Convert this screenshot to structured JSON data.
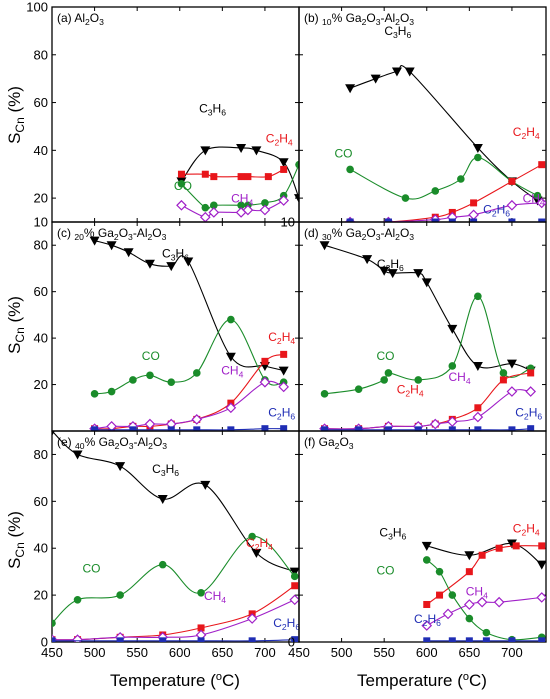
{
  "figure": {
    "xlabel": "Temperature (°C)",
    "ylabel": "S_Cn (%)"
  },
  "colors": {
    "C3H6": "#000000",
    "C2H4": "#e8161b",
    "CO": "#1a8c2a",
    "CH4": "#a020c8",
    "C2H6": "#1f2db4"
  },
  "chart_data": [
    {
      "type": "scatter",
      "panel": "(a)",
      "title": "(a) Al2O3",
      "xlim": [
        450,
        740
      ],
      "ylim": [
        10,
        100
      ],
      "yticks": [
        10,
        20,
        40,
        60,
        80,
        100
      ],
      "xticks": [
        450,
        500,
        550,
        600,
        650,
        700
      ],
      "series": [
        {
          "name": "C3H6",
          "marker": "tri-down",
          "x": [
            602,
            630,
            672,
            690,
            722,
            740
          ],
          "y": [
            27,
            40,
            41,
            40,
            35,
            20
          ]
        },
        {
          "name": "C2H4",
          "marker": "square",
          "x": [
            602,
            630,
            640,
            672,
            680,
            704,
            722
          ],
          "y": [
            30,
            30,
            29,
            29,
            29,
            29,
            32
          ]
        },
        {
          "name": "CO",
          "marker": "circle",
          "x": [
            602,
            630,
            640,
            672,
            680,
            700,
            722,
            740
          ],
          "y": [
            26,
            16,
            17,
            17,
            17,
            18,
            21,
            34
          ]
        },
        {
          "name": "CH4",
          "marker": "diamond-open",
          "x": [
            602,
            630,
            640,
            672,
            680,
            700,
            722
          ],
          "y": [
            17,
            12,
            14,
            14,
            15,
            15,
            19
          ]
        }
      ],
      "labels": [
        {
          "text": "C3H6",
          "series": "C3H6"
        },
        {
          "text": "C2H4",
          "series": "C2H4"
        },
        {
          "text": "CO",
          "series": "CO"
        },
        {
          "text": "CH4",
          "series": "CH4"
        }
      ]
    },
    {
      "type": "scatter",
      "panel": "(b)",
      "title": "(b) 10% Ga2O3-Al2O3",
      "xlim": [
        450,
        740
      ],
      "ylim": [
        10,
        100
      ],
      "yticks": [
        10,
        20,
        40,
        60,
        80,
        100
      ],
      "xticks": [
        450,
        500,
        550,
        600,
        650,
        700
      ],
      "series": [
        {
          "name": "C3H6",
          "marker": "tri-down",
          "x": [
            510,
            540,
            565,
            580,
            660,
            700,
            730
          ],
          "y": [
            66,
            70,
            73,
            73,
            41,
            27,
            19
          ]
        },
        {
          "name": "CO",
          "marker": "circle",
          "x": [
            510,
            575,
            610,
            640,
            660,
            700,
            730
          ],
          "y": [
            32,
            20,
            23,
            28,
            37,
            27,
            21
          ]
        },
        {
          "name": "C2H4",
          "marker": "square",
          "x": [
            510,
            555,
            610,
            630,
            655,
            700,
            735
          ],
          "y": [
            10,
            10,
            12,
            14,
            18,
            27,
            34
          ]
        },
        {
          "name": "CH4",
          "marker": "diamond-open",
          "x": [
            510,
            555,
            610,
            630,
            655,
            700,
            735
          ],
          "y": [
            10,
            10,
            11,
            12,
            13,
            17,
            18
          ]
        },
        {
          "name": "C2H6",
          "marker": "square",
          "x": [
            510,
            555,
            610,
            630,
            655,
            700,
            735
          ],
          "y": [
            10,
            10,
            10,
            10,
            10,
            10,
            10
          ]
        }
      ],
      "labels": [
        {
          "text": "C3H6",
          "series": "C3H6"
        },
        {
          "text": "CO",
          "series": "CO"
        },
        {
          "text": "C2H4",
          "series": "C2H4"
        },
        {
          "text": "CH4",
          "series": "CH4"
        },
        {
          "text": "C2H6",
          "series": "C2H6"
        }
      ]
    },
    {
      "type": "scatter",
      "panel": "(c)",
      "title": "(c) 20% Ga2O3-Al2O3",
      "xlim": [
        450,
        740
      ],
      "ylim": [
        0,
        90
      ],
      "yticks": [
        20,
        40,
        60,
        80
      ],
      "xticks": [
        450,
        500,
        550,
        600,
        650,
        700
      ],
      "series": [
        {
          "name": "C3H6",
          "marker": "tri-down",
          "x": [
            500,
            520,
            540,
            565,
            590,
            610,
            660,
            700,
            722
          ],
          "y": [
            82,
            80,
            77,
            72,
            71,
            73,
            32,
            28,
            26
          ]
        },
        {
          "name": "CO",
          "marker": "circle",
          "x": [
            500,
            520,
            545,
            565,
            590,
            620,
            660,
            700,
            722
          ],
          "y": [
            16,
            17,
            22,
            24,
            21,
            25,
            48,
            22,
            21
          ]
        },
        {
          "name": "C2H4",
          "marker": "square",
          "x": [
            500,
            520,
            545,
            565,
            590,
            620,
            660,
            700,
            722
          ],
          "y": [
            1,
            1,
            2,
            2,
            3,
            5,
            12,
            30,
            33
          ]
        },
        {
          "name": "CH4",
          "marker": "diamond-open",
          "x": [
            500,
            520,
            545,
            565,
            590,
            620,
            660,
            700,
            722
          ],
          "y": [
            1,
            2,
            2,
            3,
            3,
            5,
            10,
            21,
            19
          ]
        },
        {
          "name": "C2H6",
          "marker": "square",
          "x": [
            500,
            545,
            590,
            620,
            660,
            700,
            722
          ],
          "y": [
            0.5,
            0.5,
            0.5,
            0.5,
            0.5,
            1,
            1
          ]
        }
      ],
      "labels": [
        {
          "text": "C3H6",
          "series": "C3H6"
        },
        {
          "text": "CO",
          "series": "CO"
        },
        {
          "text": "C2H4",
          "series": "C2H4"
        },
        {
          "text": "CH4",
          "series": "CH4"
        },
        {
          "text": "C2H6",
          "series": "C2H6"
        }
      ]
    },
    {
      "type": "scatter",
      "panel": "(d)",
      "title": "(d) 30% Ga2O3-Al2O3",
      "xlim": [
        450,
        740
      ],
      "ylim": [
        0,
        90
      ],
      "yticks": [
        20,
        40,
        60,
        80
      ],
      "xticks": [
        450,
        500,
        550,
        600,
        650,
        700
      ],
      "series": [
        {
          "name": "C3H6",
          "marker": "tri-down",
          "x": [
            480,
            530,
            550,
            560,
            590,
            600,
            630,
            660,
            700,
            722
          ],
          "y": [
            80,
            74,
            69,
            68,
            68,
            64,
            44,
            28,
            29,
            26
          ]
        },
        {
          "name": "CO",
          "marker": "circle",
          "x": [
            480,
            520,
            550,
            555,
            590,
            630,
            660,
            690,
            722
          ],
          "y": [
            16,
            18,
            22,
            25,
            22,
            28,
            58,
            25,
            27
          ]
        },
        {
          "name": "C2H4",
          "marker": "square",
          "x": [
            480,
            520,
            555,
            590,
            610,
            630,
            660,
            690,
            722
          ],
          "y": [
            1,
            1,
            2,
            2,
            3,
            5,
            10,
            22,
            25
          ]
        },
        {
          "name": "CH4",
          "marker": "diamond-open",
          "x": [
            480,
            520,
            555,
            590,
            610,
            630,
            660,
            700,
            722
          ],
          "y": [
            1,
            1,
            2,
            2,
            3,
            4,
            6,
            17,
            17
          ]
        },
        {
          "name": "C2H6",
          "marker": "square",
          "x": [
            480,
            520,
            555,
            590,
            630,
            660,
            700,
            722
          ],
          "y": [
            0.5,
            0.5,
            0.5,
            0.5,
            0.5,
            0.5,
            0.5,
            1
          ]
        }
      ],
      "labels": [
        {
          "text": "C3H6",
          "series": "C3H6"
        },
        {
          "text": "CO",
          "series": "CO"
        },
        {
          "text": "C2H4",
          "series": "C2H4"
        },
        {
          "text": "CH4",
          "series": "CH4"
        },
        {
          "text": "C2H6",
          "series": "C2H6"
        }
      ]
    },
    {
      "type": "scatter",
      "panel": "(e)",
      "title": "(e) 40% Ga2O3-Al2O3",
      "xlim": [
        450,
        740
      ],
      "ylim": [
        0,
        90
      ],
      "yticks": [
        0,
        20,
        40,
        60,
        80
      ],
      "xticks": [
        450,
        500,
        550,
        600,
        650,
        700
      ],
      "xticklabels_shown": true,
      "series": [
        {
          "name": "C3H6",
          "marker": "tri-down",
          "x": [
            450,
            480,
            530,
            580,
            630,
            690,
            735
          ],
          "y": [
            90,
            80,
            75,
            61,
            67,
            38,
            30
          ]
        },
        {
          "name": "CO",
          "marker": "circle",
          "x": [
            450,
            480,
            530,
            580,
            625,
            685,
            735
          ],
          "y": [
            8,
            18,
            20,
            33,
            21,
            45,
            28
          ]
        },
        {
          "name": "C2H4",
          "marker": "square",
          "x": [
            450,
            480,
            530,
            580,
            625,
            685,
            735
          ],
          "y": [
            1,
            1,
            2,
            3,
            6,
            12,
            24
          ]
        },
        {
          "name": "CH4",
          "marker": "diamond-open",
          "x": [
            450,
            480,
            530,
            580,
            625,
            685,
            735
          ],
          "y": [
            1,
            1,
            2,
            2,
            3,
            10,
            18
          ]
        },
        {
          "name": "C2H6",
          "marker": "square",
          "x": [
            450,
            530,
            580,
            625,
            685,
            735
          ],
          "y": [
            0.5,
            0.5,
            0.5,
            0.5,
            0.5,
            1
          ]
        }
      ],
      "labels": [
        {
          "text": "C3H6",
          "series": "C3H6"
        },
        {
          "text": "CO",
          "series": "CO"
        },
        {
          "text": "C2H4",
          "series": "C2H4"
        },
        {
          "text": "CH4",
          "series": "CH4"
        },
        {
          "text": "C2H6",
          "series": "C2H6"
        }
      ]
    },
    {
      "type": "scatter",
      "panel": "(f)",
      "title": "(f) Ga2O3",
      "xlim": [
        450,
        740
      ],
      "ylim": [
        0,
        90
      ],
      "yticks": [
        0,
        20,
        40,
        60,
        80
      ],
      "xticks": [
        450,
        500,
        550,
        600,
        650,
        700
      ],
      "series": [
        {
          "name": "C3H6",
          "marker": "tri-down",
          "x": [
            600,
            650,
            700,
            735
          ],
          "y": [
            41,
            37,
            42,
            33
          ]
        },
        {
          "name": "C2H4",
          "marker": "square",
          "x": [
            600,
            615,
            650,
            665,
            685,
            705,
            735
          ],
          "y": [
            16,
            20,
            30,
            37,
            40,
            41,
            41
          ]
        },
        {
          "name": "CO",
          "marker": "circle",
          "x": [
            600,
            615,
            630,
            650,
            670,
            700,
            735
          ],
          "y": [
            35,
            30,
            20,
            10,
            4,
            1,
            2
          ]
        },
        {
          "name": "CH4",
          "marker": "diamond-open",
          "x": [
            600,
            625,
            650,
            665,
            685,
            735
          ],
          "y": [
            7,
            12,
            16,
            17,
            17,
            19
          ]
        },
        {
          "name": "C2H6",
          "marker": "square",
          "x": [
            600,
            630,
            650,
            670,
            700,
            735
          ],
          "y": [
            0.5,
            0.5,
            0.5,
            0.5,
            0.5,
            0.5
          ]
        }
      ],
      "labels": [
        {
          "text": "C3H6",
          "series": "C3H6"
        },
        {
          "text": "C2H4",
          "series": "C2H4"
        },
        {
          "text": "CO",
          "series": "CO"
        },
        {
          "text": "CH4",
          "series": "CH4"
        },
        {
          "text": "C2H6",
          "series": "C2H6"
        }
      ]
    }
  ]
}
